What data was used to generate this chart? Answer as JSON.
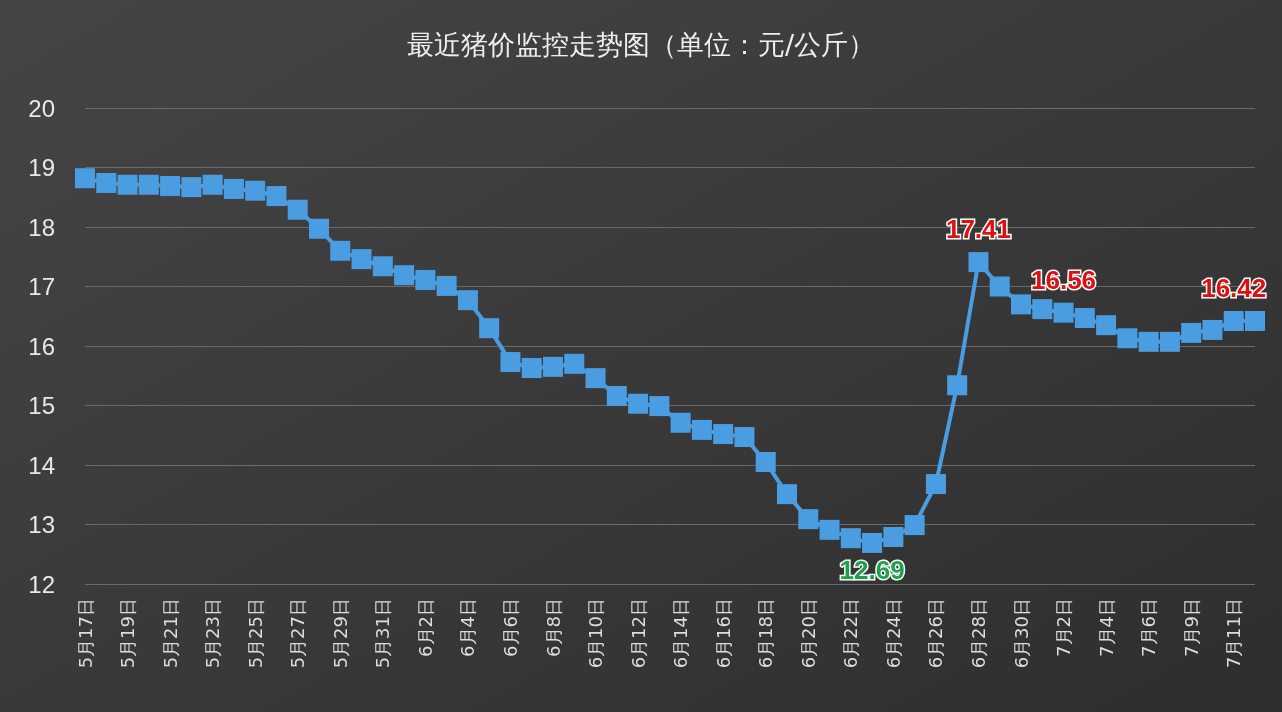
{
  "chart_data": {
    "type": "line",
    "title": "最近猪价监控走势图（单位：元/公斤）",
    "categories": [
      "5月17日",
      null,
      "5月19日",
      null,
      "5月21日",
      null,
      "5月23日",
      null,
      "5月25日",
      null,
      "5月27日",
      null,
      "5月29日",
      null,
      "5月31日",
      null,
      "6月2日",
      null,
      "6月4日",
      null,
      "6月6日",
      null,
      "6月8日",
      null,
      "6月10日",
      null,
      "6月12日",
      null,
      "6月14日",
      null,
      "6月16日",
      null,
      "6月18日",
      null,
      "6月20日",
      null,
      "6月22日",
      null,
      "6月24日",
      null,
      "6月26日",
      null,
      "6月28日",
      null,
      "6月30日",
      null,
      "7月2日",
      null,
      "7月4日",
      null,
      "7月6日",
      null,
      "7月9日",
      null,
      "7月11日",
      null
    ],
    "values": [
      18.82,
      18.74,
      18.71,
      18.71,
      18.69,
      18.67,
      18.71,
      18.64,
      18.61,
      18.52,
      18.29,
      17.97,
      17.6,
      17.46,
      17.34,
      17.19,
      17.11,
      17.01,
      16.77,
      16.3,
      15.73,
      15.63,
      15.65,
      15.7,
      15.46,
      15.16,
      15.03,
      14.99,
      14.71,
      14.59,
      14.52,
      14.47,
      14.05,
      13.51,
      13.09,
      12.91,
      12.77,
      12.69,
      12.79,
      12.99,
      13.68,
      15.34,
      17.41,
      17.0,
      16.7,
      16.62,
      16.56,
      16.47,
      16.35,
      16.13,
      16.07,
      16.07,
      16.22,
      16.27,
      16.42,
      16.42
    ],
    "value_labels": [
      null,
      null,
      null,
      null,
      null,
      null,
      null,
      null,
      null,
      null,
      null,
      null,
      null,
      null,
      null,
      null,
      null,
      null,
      null,
      null,
      null,
      null,
      null,
      null,
      null,
      null,
      null,
      null,
      null,
      null,
      null,
      null,
      null,
      null,
      null,
      null,
      null,
      "12.69",
      null,
      null,
      null,
      null,
      "17.41",
      null,
      null,
      null,
      "16.56",
      null,
      null,
      null,
      null,
      null,
      null,
      null,
      "16.42",
      null
    ],
    "color": "#4a9de0",
    "ylim": [
      12,
      20
    ],
    "yticks": [
      12,
      13,
      14,
      15,
      16,
      17,
      18,
      19,
      20
    ],
    "grid": "y",
    "marker": "square",
    "line_style": "solid"
  }
}
